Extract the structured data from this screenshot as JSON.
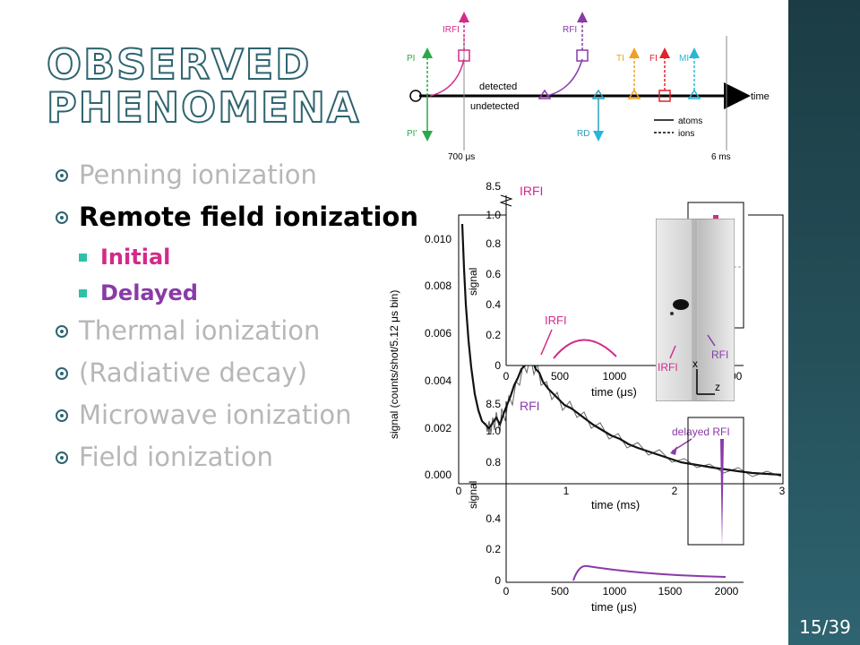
{
  "slide": {
    "title": "Observed Phenomena",
    "page_number": "15/39"
  },
  "bullets": [
    {
      "label": "Penning ionization",
      "active": false
    },
    {
      "label": "Remote field ionization",
      "active": true
    },
    {
      "label": "Thermal ionization",
      "active": false
    },
    {
      "label": "(Radiative decay)",
      "active": false
    },
    {
      "label": "Microwave ionization",
      "active": false
    },
    {
      "label": "Field ionization",
      "active": false
    }
  ],
  "sub_bullets": [
    {
      "label": "Initial",
      "color": "#d22b8a"
    },
    {
      "label": "Delayed",
      "color": "#8a3aa8"
    }
  ],
  "timeline": {
    "above_labels": [
      "PI",
      "IRFI",
      "RFI",
      "TI",
      "FI",
      "MI"
    ],
    "below_labels": [
      "PI'",
      "RD"
    ],
    "line_labels": {
      "detected": "detected",
      "undetected": "undetected",
      "time": "time"
    },
    "legend": {
      "atoms": "atoms",
      "ions": "ions"
    },
    "ticks": {
      "t1": "700 μs",
      "t2": "6 ms"
    },
    "colors": {
      "PI": "#2aa84a",
      "IRFI": "#d22b8a",
      "RFI": "#8a3aa8",
      "TI": "#f0a020",
      "FI": "#e0222a",
      "MI": "#29b6d8",
      "RD": "#29a0c0"
    }
  },
  "main_plot": {
    "ylabel": "signal (counts/shot/5.12 μs bin)",
    "xlabel": "time (ms)",
    "yticks": [
      "0.000",
      "0.002",
      "0.004",
      "0.006",
      "0.008",
      "0.010"
    ],
    "xticks": [
      "0",
      "1",
      "2",
      "3"
    ],
    "annotation": "delayed RFI"
  },
  "inset_top": {
    "title": "IRFI",
    "ylabel": "signal",
    "xlabel": "time (μs)",
    "yticks": [
      "0",
      "0.2",
      "0.4",
      "0.6",
      "0.8",
      "1.0",
      "8.5"
    ],
    "xticks": [
      "0",
      "500",
      "1000",
      "2000"
    ],
    "annotation": "IRFI"
  },
  "inset_bottom": {
    "title": "RFI",
    "ylabel": "signal",
    "xlabel": "time (μs)",
    "yticks": [
      "0",
      "0.2",
      "0.4",
      "0.8",
      "1.0",
      "8.5"
    ],
    "xticks": [
      "0",
      "500",
      "1000",
      "1500",
      "2000"
    ]
  },
  "image_inset": {
    "labels": [
      "IRFI",
      "RFI"
    ],
    "axes": {
      "x": "x",
      "z": "z"
    }
  }
}
